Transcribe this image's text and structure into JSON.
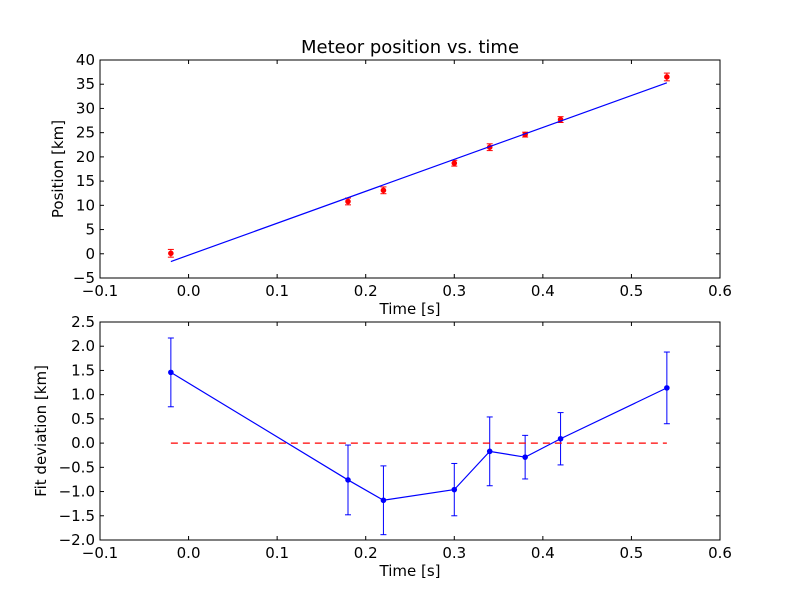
{
  "chart_data": [
    {
      "type": "scatter",
      "title": "Meteor position vs. time",
      "xlabel": "Time [s]",
      "ylabel": "Position [km]",
      "xlim": [
        -0.1,
        0.6
      ],
      "ylim": [
        -5,
        40
      ],
      "xticks": [
        -0.1,
        0.0,
        0.1,
        0.2,
        0.3,
        0.4,
        0.5,
        0.6
      ],
      "xtick_labels": [
        "−0.1",
        "0.0",
        "0.1",
        "0.2",
        "0.3",
        "0.4",
        "0.5",
        "0.6"
      ],
      "yticks": [
        -5,
        0,
        5,
        10,
        15,
        20,
        25,
        30,
        35,
        40
      ],
      "ytick_labels": [
        "−5",
        "0",
        "5",
        "10",
        "15",
        "20",
        "25",
        "30",
        "35",
        "40"
      ],
      "grid": false,
      "series": [
        {
          "kind": "errorbar-points",
          "color": "#ff0000",
          "x": [
            -0.02,
            0.18,
            0.22,
            0.3,
            0.34,
            0.38,
            0.42,
            0.54
          ],
          "y": [
            0.1,
            10.8,
            13.1,
            18.7,
            22.0,
            24.6,
            27.7,
            36.5
          ],
          "yerr": [
            0.8,
            0.7,
            0.7,
            0.6,
            0.7,
            0.5,
            0.6,
            0.8
          ]
        },
        {
          "kind": "fit-line",
          "color": "#0000ff",
          "x": [
            -0.02,
            0.54
          ],
          "y": [
            -1.6,
            35.3
          ]
        }
      ]
    },
    {
      "type": "line",
      "title": "",
      "xlabel": "Time [s]",
      "ylabel": "Fit deviation [km]",
      "xlim": [
        -0.1,
        0.6
      ],
      "ylim": [
        -2.0,
        2.5
      ],
      "xticks": [
        -0.1,
        0.0,
        0.1,
        0.2,
        0.3,
        0.4,
        0.5,
        0.6
      ],
      "xtick_labels": [
        "−0.1",
        "0.0",
        "0.1",
        "0.2",
        "0.3",
        "0.4",
        "0.5",
        "0.6"
      ],
      "yticks": [
        -2.0,
        -1.5,
        -1.0,
        -0.5,
        0.0,
        0.5,
        1.0,
        1.5,
        2.0,
        2.5
      ],
      "ytick_labels": [
        "−2.0",
        "−1.5",
        "−1.0",
        "−0.5",
        "0.0",
        "0.5",
        "1.0",
        "1.5",
        "2.0",
        "2.5"
      ],
      "grid": false,
      "series": [
        {
          "kind": "errorbar-line",
          "color": "#0000ff",
          "x": [
            -0.02,
            0.18,
            0.22,
            0.3,
            0.34,
            0.38,
            0.42,
            0.54
          ],
          "y": [
            1.46,
            -0.76,
            -1.18,
            -0.96,
            -0.17,
            -0.29,
            0.09,
            1.14
          ],
          "yerr": [
            0.71,
            0.72,
            0.71,
            0.54,
            0.71,
            0.45,
            0.54,
            0.74
          ]
        },
        {
          "kind": "dashed-zero",
          "color": "#ff0000",
          "x": [
            -0.02,
            0.54
          ],
          "y": [
            0.0,
            0.0
          ]
        }
      ]
    }
  ]
}
